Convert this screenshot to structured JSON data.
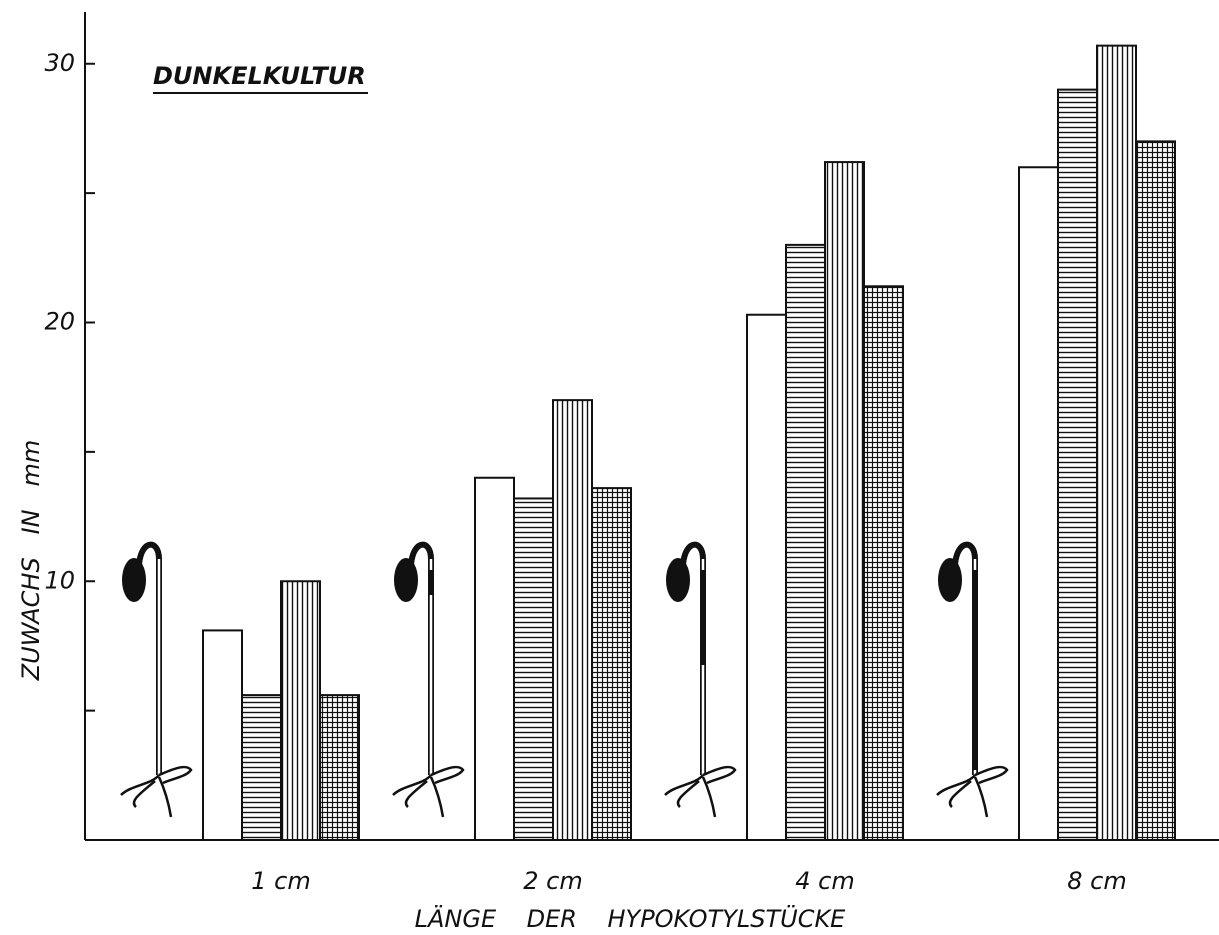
{
  "chart_data": {
    "type": "bar",
    "title": "DUNKELKULTUR",
    "x_label": "LÄNGE    DER    HYPOKOTYLSTÜCKE",
    "y_label": "ZUWACHS   IN   mm",
    "categories": [
      "1 cm",
      "2 cm",
      "4 cm",
      "8 cm"
    ],
    "series": [
      {
        "color": "#111111",
        "pattern": "none",
        "values": [
          8.1,
          14.0,
          20.3,
          26.0
        ]
      },
      {
        "color": "#111111",
        "pattern": "horizontal",
        "values": [
          5.6,
          13.2,
          23.0,
          29.0
        ]
      },
      {
        "color": "#111111",
        "pattern": "vertical",
        "values": [
          10.0,
          17.0,
          26.2,
          30.7
        ]
      },
      {
        "color": "#111111",
        "pattern": "grid",
        "values": [
          5.6,
          13.6,
          21.4,
          27.0
        ]
      }
    ],
    "ylim": [
      0,
      32
    ],
    "yticks": [
      10,
      20,
      30
    ],
    "minor_yticks": [
      5,
      15,
      25
    ],
    "grid": false
  }
}
